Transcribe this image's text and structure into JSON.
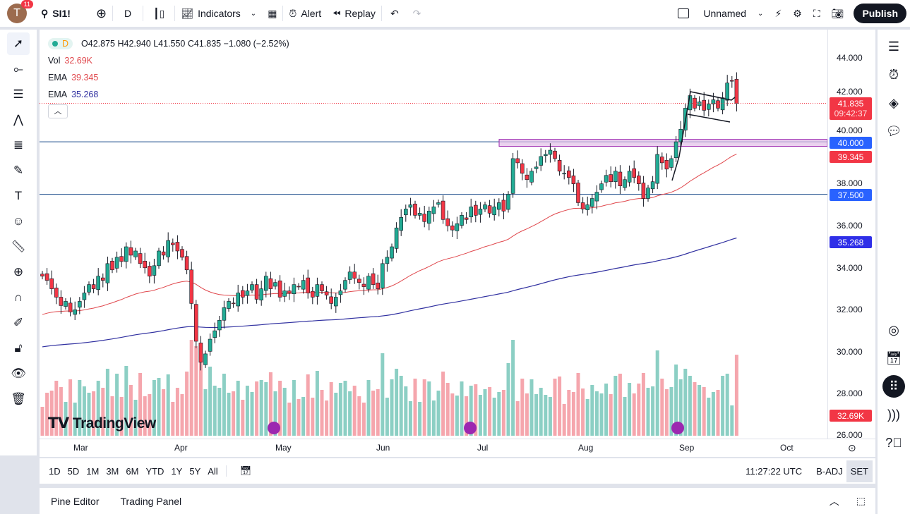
{
  "topbar": {
    "avatar_letter": "T",
    "notifications": "11",
    "symbol": "SI1!",
    "interval": "D",
    "indicators": "Indicators",
    "alert": "Alert",
    "replay": "Replay",
    "layout_name": "Unnamed",
    "publish": "Publish"
  },
  "legend": {
    "interval": "D",
    "ohlc": "O42.875 H42.940 L41.550 C41.835 −1.080 (−2.52%)",
    "vol_label": "Vol",
    "vol_value": "32.69K",
    "ema1_label": "EMA",
    "ema1_value": "39.345",
    "ema2_label": "EMA",
    "ema2_value": "35.268"
  },
  "price_axis": {
    "ticks": [
      "44.000",
      "42.000",
      "40.000",
      "38.000",
      "36.000",
      "34.000",
      "32.000",
      "30.000",
      "28.000",
      "26.000"
    ],
    "last_price": "41.835",
    "countdown": "09:42:37",
    "level1": "40.000",
    "level2": "37.500",
    "ema1": "39.345",
    "ema2": "35.268",
    "volume": "32.69K"
  },
  "time_axis": {
    "labels": [
      "Mar",
      "Apr",
      "May",
      "Jun",
      "Jul",
      "Aug",
      "Sep",
      "Oct"
    ]
  },
  "range_bar": {
    "ranges": [
      "1D",
      "5D",
      "1M",
      "3M",
      "6M",
      "YTD",
      "1Y",
      "5Y",
      "All"
    ],
    "clock": "11:27:22 UTC",
    "badj": "B-ADJ",
    "session": "SET"
  },
  "bottom_panel": {
    "pine": "Pine Editor",
    "trading": "Trading Panel"
  },
  "watermark": "TradingView",
  "colors": {
    "up": "#22ab94",
    "down": "#f23645",
    "ema1": "#e0474c",
    "ema2": "#3030a0",
    "level": "#1e4d8c",
    "zone": "#e1bee7"
  },
  "chart_data": {
    "type": "candlestick",
    "ylim": [
      26,
      44
    ],
    "levels": [
      40.0,
      37.5
    ],
    "zone": [
      39.85,
      40.05
    ],
    "closes": [
      33.6,
      33.4,
      33.0,
      32.6,
      32.2,
      32.4,
      31.9,
      32.0,
      32.4,
      32.8,
      33.2,
      33.0,
      33.6,
      33.4,
      34.2,
      33.9,
      34.5,
      34.3,
      35.0,
      34.6,
      34.8,
      34.2,
      34.0,
      33.6,
      34.1,
      34.8,
      34.6,
      35.3,
      35.1,
      34.8,
      34.5,
      33.9,
      32.3,
      30.5,
      29.5,
      29.9,
      30.6,
      31.0,
      31.5,
      32.1,
      32.4,
      32.3,
      32.8,
      32.6,
      32.9,
      33.2,
      32.5,
      33.0,
      33.6,
      33.0,
      33.3,
      32.6,
      32.9,
      32.8,
      33.2,
      33.1,
      33.4,
      32.8,
      32.6,
      33.2,
      32.9,
      32.7,
      32.3,
      32.6,
      32.9,
      33.4,
      33.8,
      33.5,
      33.3,
      33.1,
      33.6,
      33.2,
      33.0,
      34.2,
      34.5,
      35.0,
      35.9,
      36.4,
      36.8,
      37.0,
      36.5,
      36.6,
      36.2,
      36.7,
      36.9,
      37.1,
      36.3,
      36.0,
      35.8,
      36.1,
      36.5,
      36.3,
      36.9,
      36.5,
      36.8,
      37.0,
      36.6,
      36.9,
      37.1,
      36.7,
      37.5,
      39.2,
      39.0,
      38.5,
      38.2,
      38.6,
      38.8,
      39.3,
      39.4,
      39.6,
      39.2,
      38.6,
      38.5,
      38.3,
      38.0,
      37.1,
      36.8,
      37.0,
      37.3,
      37.6,
      38.0,
      38.4,
      38.1,
      38.6,
      37.9,
      38.2,
      38.6,
      38.3,
      38.0,
      37.3,
      37.8,
      38.1,
      39.4,
      39.0,
      38.7,
      39.2,
      40.0,
      40.6,
      41.6,
      42.2,
      41.6,
      41.9,
      41.5,
      41.8,
      42.0,
      41.6,
      42.1,
      42.8,
      42.9,
      41.835
    ],
    "ema_fast": {
      "period": 50,
      "start": 31.7
    },
    "ema_slow": {
      "period": 200,
      "start": 30.2
    }
  }
}
